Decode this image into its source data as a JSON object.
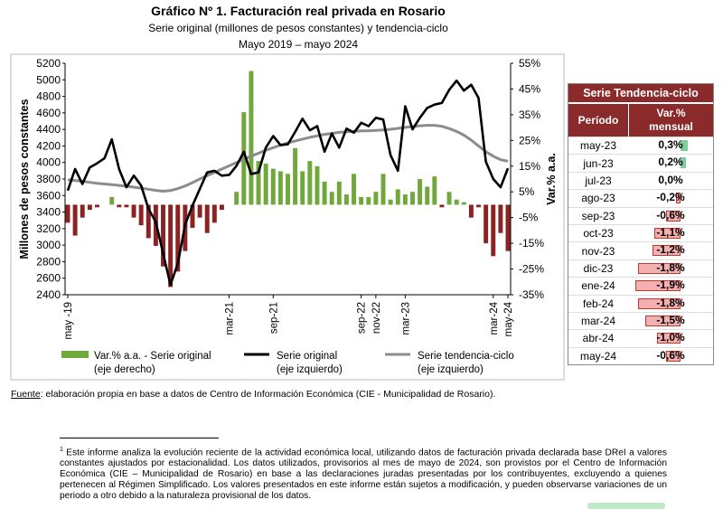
{
  "header": {
    "title": "Gráfico Nº 1. Facturación real privada en Rosario",
    "subtitle1": "Serie original (millones de pesos constantes) y tendencia-ciclo",
    "subtitle2": "Mayo 2019 – mayo 2024"
  },
  "chart_data": {
    "type": "bar+line",
    "ylabel_left": "Millones de pesos constantes",
    "ylabel_right": "Var.% a.a.",
    "ylim_left": [
      2400,
      5200
    ],
    "ylim_right": [
      -35,
      55
    ],
    "yticks_left": [
      "2400",
      "2600",
      "2800",
      "3000",
      "3200",
      "3400",
      "3600",
      "3800",
      "4000",
      "4200",
      "4400",
      "4600",
      "4800",
      "5000",
      "5200"
    ],
    "yticks_right": [
      "-35%",
      "-25%",
      "-15%",
      "-5%",
      "5%",
      "15%",
      "25%",
      "35%",
      "45%",
      "55%"
    ],
    "xtick_labels": [
      {
        "i": 0,
        "label": "may -19"
      },
      {
        "i": 22,
        "label": "mar-21"
      },
      {
        "i": 28,
        "label": "sep-21"
      },
      {
        "i": 40,
        "label": "sep-22"
      },
      {
        "i": 42,
        "label": "nov-22"
      },
      {
        "i": 46,
        "label": "mar-23"
      },
      {
        "i": 58,
        "label": "mar-24"
      },
      {
        "i": 60,
        "label": "may-24"
      }
    ],
    "series": [
      {
        "name": "Var.% a.a. - Serie original (eje derecho)",
        "kind": "bar",
        "color_pos": "#70a83b",
        "color_neg": "#8b2323",
        "values": [
          -7,
          -12,
          -5,
          -2,
          -1,
          0,
          3,
          -1,
          -1,
          -5,
          -8,
          -13,
          -16,
          -24,
          -32,
          -26,
          -18,
          -9,
          -5,
          -11,
          -7,
          -2,
          0,
          5,
          36,
          52,
          17,
          16,
          14,
          13,
          12,
          22,
          13,
          17,
          15,
          9,
          5,
          9,
          4,
          12,
          3,
          3,
          5,
          12,
          2,
          6,
          4,
          5,
          10,
          7,
          11,
          -1,
          5,
          2,
          1,
          -5,
          -1,
          -15,
          -20,
          -11,
          -18
        ],
        "note": "clipped"
      },
      {
        "name": "Serie original (eje izquierdo)",
        "kind": "line",
        "color": "#000000",
        "values": [
          3660,
          3920,
          3740,
          3940,
          3990,
          4050,
          4280,
          3920,
          3700,
          3840,
          3720,
          3440,
          3280,
          2900,
          2520,
          2780,
          3250,
          3480,
          3680,
          3880,
          3900,
          3840,
          3850,
          3960,
          4130,
          3860,
          3880,
          4180,
          4320,
          4210,
          4220,
          4370,
          4530,
          4390,
          4440,
          4130,
          4350,
          4180,
          4410,
          4360,
          4480,
          4440,
          4540,
          4520,
          4090,
          3900,
          4680,
          4400,
          4540,
          4660,
          4700,
          4720,
          4880,
          4990,
          4870,
          4940,
          4780,
          4010,
          3800,
          3700,
          3930
        ],
        "note": "scaled"
      },
      {
        "name": "Serie tendencia-ciclo (eje izquierdo)",
        "kind": "line",
        "color": "#8c8c8c",
        "values": [
          3790,
          3782,
          3773,
          3760,
          3748,
          3740,
          3732,
          3722,
          3712,
          3702,
          3690,
          3676,
          3662,
          3652,
          3660,
          3684,
          3716,
          3756,
          3800,
          3840,
          3880,
          3920,
          3960,
          4000,
          4040,
          4076,
          4112,
          4148,
          4180,
          4210,
          4236,
          4260,
          4282,
          4304,
          4322,
          4340,
          4352,
          4364,
          4372,
          4378,
          4382,
          4384,
          4388,
          4394,
          4402,
          4412,
          4424,
          4434,
          4444,
          4450,
          4450,
          4438,
          4410,
          4376,
          4330,
          4270,
          4200,
          4130,
          4076,
          4034,
          4015
        ]
      }
    ],
    "legend": [
      {
        "label": "Var.% a.a. - Serie original",
        "sublabel": "(eje derecho)",
        "color": "#70a83b"
      },
      {
        "label": "Serie original",
        "sublabel": "(eje izquierdo)",
        "color": "#000000"
      },
      {
        "label": "Serie tendencia-ciclo",
        "sublabel": "(eje izquierdo)",
        "color": "#8c8c8c"
      }
    ]
  },
  "table": {
    "title": "Serie Tendencia-ciclo",
    "col_period": "Período",
    "col_var_line1": "Var.%",
    "col_var_line2": "mensual",
    "rows": [
      {
        "period": "may-23",
        "value": 0.3,
        "text": "0,3%"
      },
      {
        "period": "jun-23",
        "value": 0.2,
        "text": "0,2%"
      },
      {
        "period": "jul-23",
        "value": 0.0,
        "text": "0,0%"
      },
      {
        "period": "ago-23",
        "value": -0.2,
        "text": "-0,2%"
      },
      {
        "period": "sep-23",
        "value": -0.6,
        "text": "-0,6%"
      },
      {
        "period": "oct-23",
        "value": -1.1,
        "text": "-1,1%"
      },
      {
        "period": "nov-23",
        "value": -1.2,
        "text": "-1,2%"
      },
      {
        "period": "dic-23",
        "value": -1.8,
        "text": "-1,8%"
      },
      {
        "period": "ene-24",
        "value": -1.9,
        "text": "-1,9%"
      },
      {
        "period": "feb-24",
        "value": -1.8,
        "text": "-1,8%"
      },
      {
        "period": "mar-24",
        "value": -1.5,
        "text": "-1,5%"
      },
      {
        "period": "abr-24",
        "value": -1.0,
        "text": "-1,0%"
      },
      {
        "period": "may-24",
        "value": -0.6,
        "text": "-0,6%"
      }
    ]
  },
  "source": {
    "label": "Fuente",
    "text": ": elaboración propia en base a datos de Centro de Información Económica (CIE - Municipalidad de Rosario)."
  },
  "footnote": {
    "marker": "1",
    "text": "Este informe analiza la evolución reciente de la actividad económica local, utilizando datos de facturación privada declarada base DReI a valores constantes ajustados por estacionalidad. Los datos utilizados, provisorios al mes de mayo de 2024, son provistos por el Centro de Información Económica (CIE – Municipalidad de Rosario) en base a las declaraciones juradas presentadas por los contribuyentes, excluyendo a quienes pertenecen al Régimen Simplificado. Los valores presentados en este informe están sujetos a modificación, y pueden observarse variaciones de un periodo a otro debido a la naturaleza provisional de los datos."
  }
}
